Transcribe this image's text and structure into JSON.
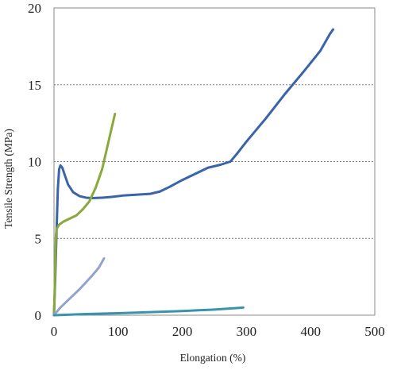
{
  "chart_data": {
    "type": "line",
    "title": "",
    "xlabel": "Elongation (%)",
    "ylabel": "Tensile Strength (MPa)",
    "xlim": [
      0,
      500
    ],
    "ylim": [
      0,
      20
    ],
    "x_ticks": [
      0,
      100,
      200,
      300,
      400,
      500
    ],
    "y_ticks": [
      0,
      5,
      10,
      15,
      20
    ],
    "grid": "horizontal dashed at 5, 10, 15",
    "legend": "none",
    "series": [
      {
        "color": "#3a64a8",
        "points": [
          [
            0,
            0
          ],
          [
            2,
            2.5
          ],
          [
            4,
            5.5
          ],
          [
            6,
            8.2
          ],
          [
            8,
            9.5
          ],
          [
            10,
            9.75
          ],
          [
            13,
            9.6
          ],
          [
            17,
            9.1
          ],
          [
            22,
            8.5
          ],
          [
            30,
            8.0
          ],
          [
            40,
            7.75
          ],
          [
            50,
            7.65
          ],
          [
            60,
            7.62
          ],
          [
            75,
            7.65
          ],
          [
            90,
            7.7
          ],
          [
            110,
            7.8
          ],
          [
            130,
            7.85
          ],
          [
            150,
            7.9
          ],
          [
            165,
            8.05
          ],
          [
            180,
            8.35
          ],
          [
            200,
            8.8
          ],
          [
            220,
            9.2
          ],
          [
            240,
            9.6
          ],
          [
            260,
            9.8
          ],
          [
            275,
            10.0
          ],
          [
            285,
            10.5
          ],
          [
            300,
            11.3
          ],
          [
            330,
            12.8
          ],
          [
            360,
            14.4
          ],
          [
            390,
            15.9
          ],
          [
            415,
            17.2
          ],
          [
            430,
            18.3
          ],
          [
            435,
            18.6
          ]
        ]
      },
      {
        "color": "#8aa83c",
        "points": [
          [
            0,
            0
          ],
          [
            1,
            1.5
          ],
          [
            2,
            3.5
          ],
          [
            3,
            5.2
          ],
          [
            4,
            5.6
          ],
          [
            8,
            5.9
          ],
          [
            15,
            6.1
          ],
          [
            25,
            6.3
          ],
          [
            35,
            6.5
          ],
          [
            45,
            6.9
          ],
          [
            55,
            7.4
          ],
          [
            65,
            8.3
          ],
          [
            75,
            9.5
          ],
          [
            85,
            11.3
          ],
          [
            95,
            13.1
          ]
        ]
      },
      {
        "color": "#93a3cc",
        "points": [
          [
            0,
            0
          ],
          [
            10,
            0.5
          ],
          [
            20,
            0.9
          ],
          [
            30,
            1.3
          ],
          [
            40,
            1.7
          ],
          [
            50,
            2.15
          ],
          [
            60,
            2.6
          ],
          [
            70,
            3.1
          ],
          [
            78,
            3.7
          ]
        ]
      },
      {
        "color": "#3a93ad",
        "points": [
          [
            0,
            0
          ],
          [
            50,
            0.08
          ],
          [
            100,
            0.13
          ],
          [
            150,
            0.2
          ],
          [
            200,
            0.27
          ],
          [
            250,
            0.37
          ],
          [
            280,
            0.45
          ],
          [
            295,
            0.5
          ]
        ]
      }
    ]
  }
}
